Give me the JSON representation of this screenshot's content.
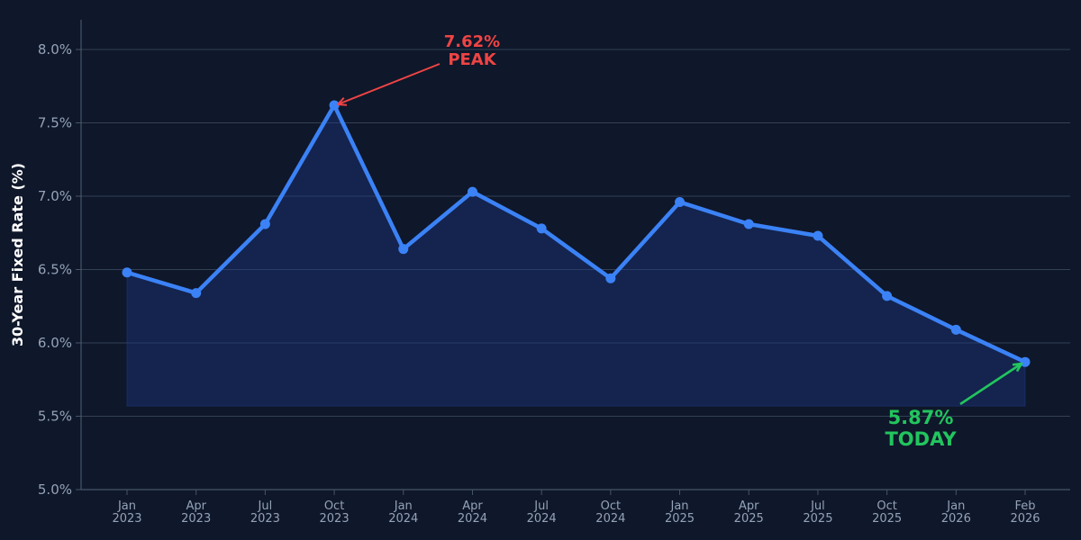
{
  "chart_data": {
    "type": "area",
    "title": "",
    "xlabel": "",
    "ylabel": "30-Year Fixed Rate (%)",
    "ylim": [
      5.0,
      8.2
    ],
    "yticks": [
      "5.0%",
      "5.5%",
      "6.0%",
      "6.5%",
      "7.0%",
      "7.5%",
      "8.0%"
    ],
    "ytick_values": [
      5.0,
      5.5,
      6.0,
      6.5,
      7.0,
      7.5,
      8.0
    ],
    "grid": true,
    "categories": [
      [
        "Jan",
        "2023"
      ],
      [
        "Apr",
        "2023"
      ],
      [
        "Jul",
        "2023"
      ],
      [
        "Oct",
        "2023"
      ],
      [
        "Jan",
        "2024"
      ],
      [
        "Apr",
        "2024"
      ],
      [
        "Jul",
        "2024"
      ],
      [
        "Oct",
        "2024"
      ],
      [
        "Jan",
        "2025"
      ],
      [
        "Apr",
        "2025"
      ],
      [
        "Jul",
        "2025"
      ],
      [
        "Oct",
        "2025"
      ],
      [
        "Jan",
        "2026"
      ],
      [
        "Feb",
        "2026"
      ]
    ],
    "series": [
      {
        "values": [
          6.48,
          6.34,
          6.81,
          7.62,
          6.64,
          7.03,
          6.78,
          6.44,
          6.96,
          6.81,
          6.73,
          6.32,
          6.09,
          5.87
        ]
      }
    ],
    "fill_base": 5.57,
    "annotations": [
      {
        "point_index": 3,
        "value": 7.62,
        "line1": "7.62%",
        "line2": "PEAK",
        "color": "#ef4444"
      },
      {
        "point_index": 13,
        "value": 5.87,
        "line1": "5.87%",
        "line2": "TODAY",
        "color": "#22c55e"
      }
    ],
    "colors": {
      "line": "#3b82f6",
      "fill": "#1e3a8a",
      "grid": "#334155",
      "axis": "#475569",
      "background": "#0f172a"
    }
  }
}
